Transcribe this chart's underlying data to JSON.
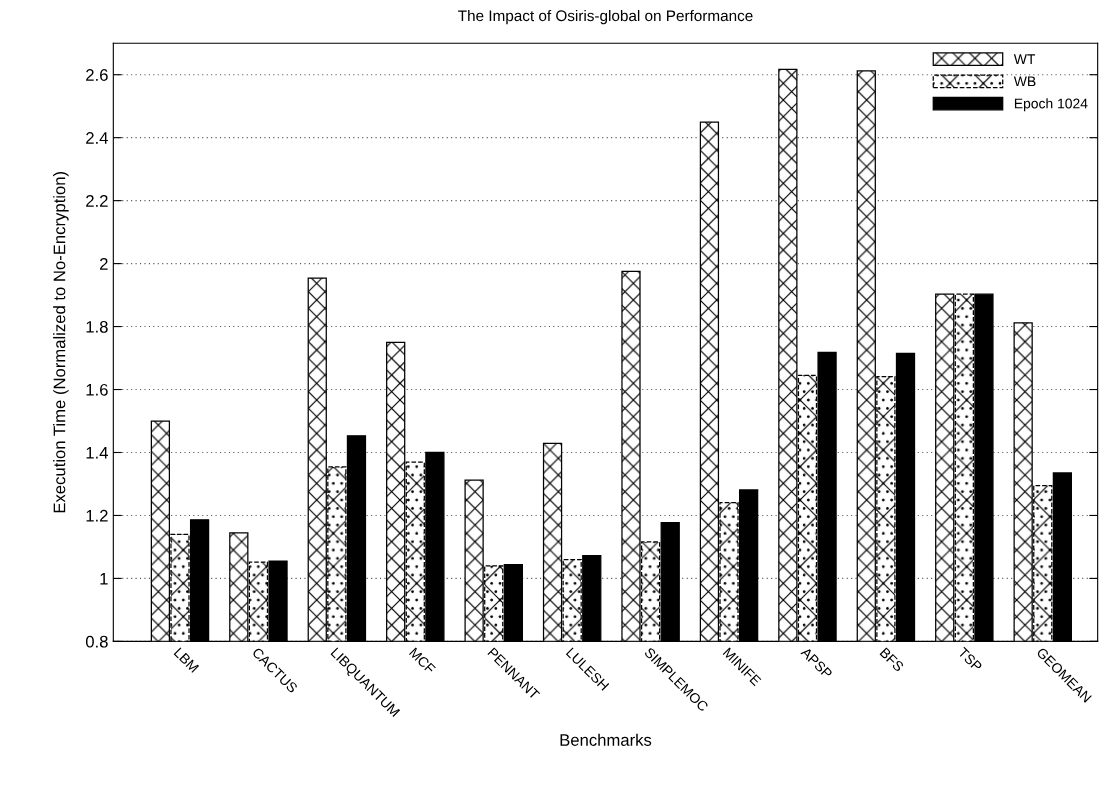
{
  "chart_data": {
    "type": "bar",
    "title": "The Impact of Osiris-global on Performance",
    "xlabel": "Benchmarks",
    "ylabel": "Execution Time (Normalized to No-Encryption)",
    "categories": [
      "LBM",
      "CACTUS",
      "LIBQUANTUM",
      "MCF",
      "PENNANT",
      "LULESH",
      "SIMPLEMOC",
      "MINIFE",
      "APSP",
      "BFS",
      "TSP",
      "GEOMEAN"
    ],
    "series": [
      {
        "name": "WT",
        "color": "#000000",
        "values": [
          1.5,
          1.145,
          1.954,
          1.75,
          1.312,
          1.429,
          1.975,
          2.449,
          2.617,
          2.612,
          1.903,
          1.812
        ]
      },
      {
        "name": "WB",
        "color": "#000000",
        "values": [
          1.14,
          1.052,
          1.354,
          1.369,
          1.04,
          1.06,
          1.116,
          1.241,
          1.645,
          1.641,
          1.903,
          1.295
        ]
      },
      {
        "name": "Epoch 1024",
        "color": "#000000",
        "values": [
          1.186,
          1.055,
          1.453,
          1.4,
          1.044,
          1.072,
          1.177,
          1.281,
          1.718,
          1.715,
          1.903,
          1.335
        ]
      }
    ],
    "ylim": [
      0.8,
      2.7
    ],
    "yticks": [
      0.8,
      1,
      1.2,
      1.4,
      1.6,
      1.8,
      2,
      2.2,
      2.4,
      2.6
    ],
    "grid": "y",
    "legend": "top right"
  }
}
